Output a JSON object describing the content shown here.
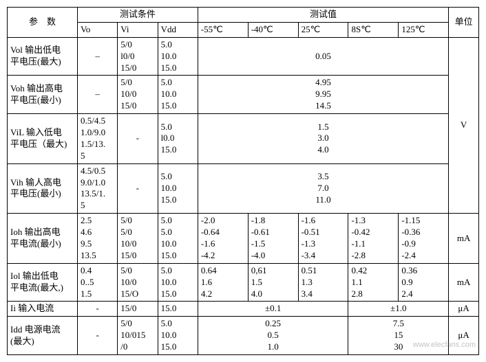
{
  "header": {
    "param": "参　数",
    "cond": "测试条件",
    "vals": "测试值",
    "unit": "单位",
    "vo": "Vo",
    "vi": "Vi",
    "vdd": "Vdd",
    "t1": "-55℃",
    "t2": "-40℃",
    "t3": "25℃",
    "t4": "8S℃",
    "t5": "125℃"
  },
  "rows": {
    "vol": {
      "name": "Vol  输出低电\n平电压(最大)",
      "vo": "–",
      "vi": "5/0\nl0/0\n15/0",
      "vdd": "5.0\n10.0\n15.0",
      "val": "0.05"
    },
    "voh": {
      "name": "Voh 输出高电\n平电压(最小)",
      "vo": "–",
      "vi": "5/0\n10/0\n15/0",
      "vdd": "5.0\n10.0\n15.0",
      "val": "4.95\n9.95\n14.5"
    },
    "vil": {
      "name": "ViL 输入低电\n平电压（最大)",
      "vo": "0.5/4.5\n1.0/9.0\n1.5/13.\n5",
      "vi": "-",
      "vdd": "5.0\nl0.0\n15.0",
      "val": "1.5\n3.0\n4.0"
    },
    "vih": {
      "name": "Vih 输人高电\n平电压(最小)",
      "vo": "4.5/0.5\n9.0/1.0\n13.5/1.\n5",
      "vi": "-",
      "vdd": "5.0\n10.0\n15.0",
      "val": "3.5\n7.0\n11.0"
    },
    "ioh": {
      "name": "Ioh 输出高电\n平电流(最小)",
      "vo": "2.5\n4.6\n9.5\n13.5",
      "vi": "5/0\n5/0\n10/0\n15/0",
      "vdd": "5.0\n5.0\n10.0\n15.0",
      "t1": "-2.0\n-0.64\n-1.6\n-4.2",
      "t2": "-1.8\n-0.61\n-1.5\n-4.0",
      "t3": "-1.6\n-0.51\n-1.3\n-3.4",
      "t4": "-1.3\n-0.42\n-1.1\n-2.8",
      "t5": "-1.15\n-0.36\n-0.9\n-2.4",
      "unit": "mA"
    },
    "iol": {
      "name": "Iol 输出低电\n平电流(最大,)",
      "vo": "0.4\n0..5\n1.5",
      "vi": "5/0\n10/0\n15/O",
      "vdd": "5.0\n10.0\n15.0",
      "t1": "0.64\n1.6\n4.2",
      "t2": "0,61\n1.5\n4.0",
      "t3": "0.51\n1.3\n3.4",
      "t4": "0.42\n1.1\n2.8",
      "t5": "0.36\n0.9\n2.4",
      "unit": "mA"
    },
    "ii": {
      "name": "Ii 输入电流",
      "vo": "-",
      "vi": "15/0",
      "vdd": "15.0",
      "v1": "±0.1",
      "v2": "±1.0",
      "unit": "μA"
    },
    "idd": {
      "name": "Idd 电源电流\n(最大)",
      "vo": "-",
      "vi": "5/0\n10/015\n/0",
      "vdd": "5.0\n10.0\n15.0",
      "v1": "0.25\n0.5\n1.0",
      "v2": "7.5\n15\n30",
      "unit": "μA"
    },
    "unitV": "V"
  },
  "watermark": "www.elecfans.com"
}
